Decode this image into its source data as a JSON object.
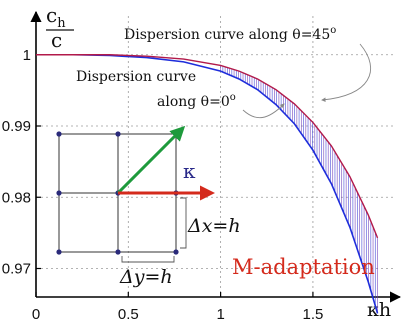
{
  "chart_data": {
    "type": "line",
    "xlabel": "κh",
    "ylabel_numerator": "c",
    "ylabel_numerator_sub": "h",
    "ylabel_denominator": "c",
    "xlim": [
      0,
      1.95
    ],
    "ylim": [
      0.966,
      1.006
    ],
    "x_ticks": [
      0,
      0.5,
      1,
      1.5
    ],
    "x_tick_labels": [
      "0",
      "0.5",
      "1",
      "1.5"
    ],
    "y_ticks": [
      0.97,
      0.98,
      0.99,
      1
    ],
    "y_tick_labels": [
      "0.97",
      "0.98",
      "0.99",
      "1"
    ],
    "grid": true,
    "series": [
      {
        "name": "Dispersion curve along θ=45°",
        "color": "#1e2ddb",
        "x": [
          0,
          0.2,
          0.4,
          0.6,
          0.8,
          1.0,
          1.1,
          1.2,
          1.3,
          1.4,
          1.5,
          1.6,
          1.7,
          1.8,
          1.85
        ],
        "y": [
          1.0,
          1.0,
          0.9999,
          0.9996,
          0.999,
          0.9977,
          0.9966,
          0.9951,
          0.993,
          0.9903,
          0.9866,
          0.9819,
          0.9758,
          0.9681,
          0.9637
        ]
      },
      {
        "name": "Dispersion curve along θ=0°",
        "color": "#b21a4a",
        "x": [
          0,
          0.2,
          0.4,
          0.6,
          0.8,
          1.0,
          1.1,
          1.2,
          1.3,
          1.4,
          1.5,
          1.6,
          1.7,
          1.8,
          1.85
        ],
        "y": [
          1.0,
          1.0,
          1.0,
          0.9998,
          0.9994,
          0.9985,
          0.9977,
          0.9966,
          0.9951,
          0.9931,
          0.9905,
          0.9872,
          0.9829,
          0.9775,
          0.9743
        ]
      }
    ],
    "annotations": {
      "theta45": {
        "text_before": "Dispersion curve along θ=45",
        "superscript": "o"
      },
      "theta0_line1": "Dispersion curve",
      "theta0_line2": {
        "text_before": "along θ=0",
        "superscript": "o"
      },
      "method": "M-adaptation",
      "kappa": "κ",
      "dx": "Δx=h",
      "dy": "Δy=h"
    },
    "colors": {
      "kappa_arrow": "#1e9a3c",
      "x_arrow": "#d42a1c",
      "kappa_text": "#2a2a8a",
      "method_text": "#d42a1c"
    }
  }
}
